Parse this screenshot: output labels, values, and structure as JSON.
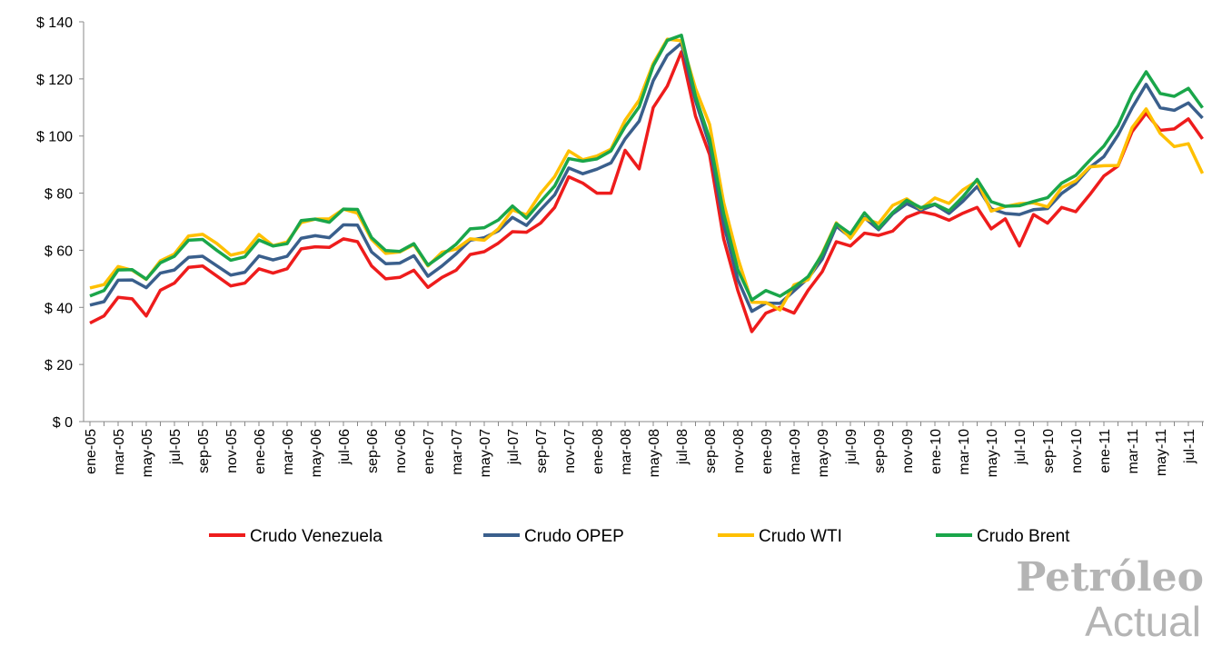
{
  "chart_data": {
    "type": "line",
    "categories": [
      "ene-05",
      null,
      "mar-05",
      null,
      "may-05",
      null,
      "jul-05",
      null,
      "sep-05",
      null,
      "nov-05",
      null,
      "ene-06",
      null,
      "mar-06",
      null,
      "may-06",
      null,
      "jul-06",
      null,
      "sep-06",
      null,
      "nov-06",
      null,
      "ene-07",
      null,
      "mar-07",
      null,
      "may-07",
      null,
      "jul-07",
      null,
      "sep-07",
      null,
      "nov-07",
      null,
      "ene-08",
      null,
      "mar-08",
      null,
      "may-08",
      null,
      "jul-08",
      null,
      "sep-08",
      null,
      "nov-08",
      null,
      "ene-09",
      null,
      "mar-09",
      null,
      "may-09",
      null,
      "jul-09",
      null,
      "sep-09",
      null,
      "nov-09",
      null,
      "ene-10",
      null,
      "mar-10",
      null,
      "may-10",
      null,
      "jul-10",
      null,
      "sep-10",
      null,
      "nov-10",
      null,
      "ene-11",
      null,
      "mar-11",
      null,
      "may-11",
      null,
      "jul-11",
      null
    ],
    "series": [
      {
        "name": "Crudo Venezuela",
        "color": "#ee1c1c",
        "values": [
          34.5,
          37,
          43.5,
          43,
          37,
          46,
          48.5,
          54,
          54.5,
          51,
          47.5,
          48.5,
          53.5,
          52,
          53.5,
          60.5,
          61.2,
          61,
          64,
          63,
          54.5,
          50,
          50.5,
          53,
          47,
          50.5,
          53,
          58.5,
          59.5,
          62.5,
          66.5,
          66.3,
          69.5,
          75,
          85.7,
          83.5,
          80,
          80,
          95,
          88.5,
          110,
          117.5,
          129.5,
          107,
          93.5,
          64,
          46,
          31.5,
          38,
          40,
          38,
          46,
          52.5,
          63,
          61.5,
          66,
          65.2,
          66.7,
          71.5,
          73.5,
          72.5,
          70.5,
          73,
          75,
          67.5,
          71,
          61.5,
          72.5,
          69.5,
          75,
          73.5,
          79.5,
          86,
          89.5,
          101.5,
          108,
          102,
          102.5,
          106,
          99
        ]
      },
      {
        "name": "Crudo OPEP",
        "color": "#3a5f8c",
        "values": [
          40.8,
          42,
          49.5,
          49.6,
          46.9,
          52,
          53.1,
          57.5,
          57.9,
          54.6,
          51.3,
          52.3,
          58,
          56.6,
          57.9,
          64.2,
          65.1,
          64.4,
          68.9,
          68.8,
          59.4,
          55.3,
          55.5,
          58.1,
          50.9,
          54.5,
          58.7,
          63.5,
          64.4,
          66.8,
          71.5,
          68.7,
          74.2,
          79.4,
          88.8,
          86.8,
          88.4,
          90.6,
          99,
          105.2,
          119.4,
          128.3,
          132.5,
          112.4,
          96.9,
          69.2,
          49.8,
          38.6,
          41.5,
          41.4,
          45.8,
          50.2,
          56.9,
          68.4,
          64.6,
          71.4,
          67.2,
          72.7,
          76.3,
          74,
          76,
          72.9,
          77.2,
          82.3,
          74.5,
          72.9,
          72.5,
          74.2,
          74.6,
          79.9,
          83.4,
          89,
          92.8,
          100.3,
          109.8,
          118.1,
          109.9,
          109,
          111.6,
          106.3
        ]
      },
      {
        "name": "Crudo WTI",
        "color": "#ffc000",
        "values": [
          46.8,
          48,
          54.3,
          53,
          49.8,
          56.3,
          58.7,
          65,
          65.6,
          62.4,
          58.3,
          59.4,
          65.5,
          61.6,
          62.9,
          69.7,
          70.9,
          71,
          74.4,
          73,
          63.8,
          58.9,
          59.4,
          62,
          54.5,
          59.3,
          60.4,
          64,
          63.5,
          67.5,
          74.1,
          72.4,
          79.9,
          85.8,
          94.8,
          91.7,
          93,
          95.4,
          105.5,
          112.6,
          125.4,
          133.9,
          133.4,
          116.7,
          104.1,
          76.7,
          57.4,
          41.8,
          41.7,
          39.1,
          47.9,
          49.7,
          59,
          69.6,
          64.2,
          71.1,
          69.4,
          75.7,
          78,
          74.5,
          78.3,
          76.4,
          81.2,
          84.3,
          73.7,
          75.3,
          76.3,
          76.6,
          75.2,
          81.9,
          84.3,
          89.2,
          89.6,
          89.7,
          102.9,
          109.5,
          100.9,
          96.3,
          97.3,
          86.9
        ]
      },
      {
        "name": "Crudo Brent",
        "color": "#1aa64a",
        "values": [
          44,
          45.9,
          53.1,
          53.2,
          49.9,
          55.6,
          57.9,
          63.5,
          63.8,
          60,
          56.5,
          57.7,
          63.6,
          61.5,
          62.3,
          70.4,
          70.9,
          69.8,
          74.4,
          74.3,
          64.4,
          59.9,
          59.6,
          62.3,
          54.8,
          58.3,
          62.1,
          67.5,
          67.9,
          70.6,
          75.5,
          71.2,
          77,
          82.5,
          92.1,
          91.2,
          92,
          94.8,
          103.3,
          110.2,
          124.6,
          133.5,
          135.3,
          113.9,
          99.1,
          72.8,
          53.2,
          42.6,
          45.9,
          43.9,
          47,
          50.8,
          58.6,
          69.3,
          65.8,
          73.1,
          67.7,
          73.2,
          77.5,
          74.9,
          76.2,
          73.8,
          78.8,
          84.8,
          77,
          75.4,
          75.6,
          77.1,
          78.4,
          83.5,
          86.2,
          91.5,
          96.5,
          103.7,
          114.6,
          122.5,
          114.9,
          113.9,
          116.7,
          109.9
        ]
      }
    ],
    "ylim": [
      0,
      140
    ],
    "yticks": [
      {
        "value": 0,
        "label": "$ 0"
      },
      {
        "value": 20,
        "label": "$ 20"
      },
      {
        "value": 40,
        "label": "$ 40"
      },
      {
        "value": 60,
        "label": "$ 60"
      },
      {
        "value": 80,
        "label": "$ 80"
      },
      {
        "value": 100,
        "label": "$ 100"
      },
      {
        "value": 120,
        "label": "$ 120"
      },
      {
        "value": 140,
        "label": "$ 140"
      }
    ],
    "legend": "bottom",
    "watermark": [
      "Petróleo",
      "Actual"
    ]
  }
}
